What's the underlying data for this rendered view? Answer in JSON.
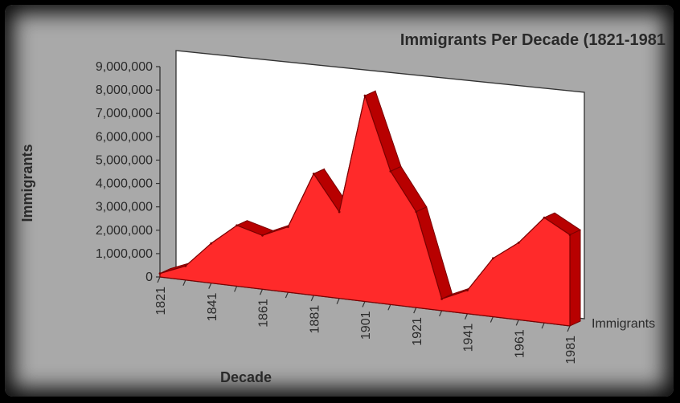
{
  "chart_data": {
    "type": "area",
    "title": "Immigrants Per Decade (1821-1981",
    "xlabel": "Decade",
    "ylabel": "Immigrants",
    "series_label": "Immigrants",
    "ylim": [
      0,
      9000000
    ],
    "yticks": [
      "0",
      "1,000,000",
      "2,000,000",
      "3,000,000",
      "4,000,000",
      "5,000,000",
      "6,000,000",
      "7,000,000",
      "8,000,000",
      "9,000,000"
    ],
    "x_tick_labels": [
      "1821",
      "1841",
      "1861",
      "1881",
      "1901",
      "1921",
      "1941",
      "1961",
      "1981"
    ],
    "x": [
      "1821",
      "1831",
      "1841",
      "1851",
      "1861",
      "1871",
      "1881",
      "1891",
      "1901",
      "1911",
      "1921",
      "1931",
      "1941",
      "1951",
      "1961",
      "1971",
      "1981"
    ],
    "values": [
      150000,
      600000,
      1700000,
      2600000,
      2300000,
      2800000,
      5200000,
      3700000,
      8800000,
      5700000,
      4100000,
      500000,
      1000000,
      2500000,
      3300000,
      4500000,
      3900000
    ],
    "colors": {
      "fill": "#ff2a2a",
      "side": "#b80000",
      "edge": "#7a0000",
      "wall": "#ffffff",
      "background": "#a9a9a9"
    },
    "grid": false,
    "legend": "right"
  }
}
